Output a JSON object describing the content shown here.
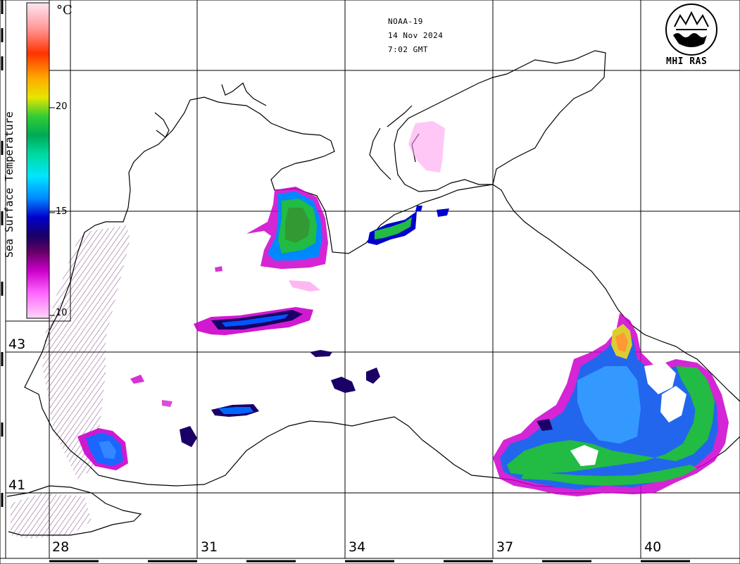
{
  "satellite": {
    "name": "NOAA-19",
    "date": "14 Nov 2024",
    "time": "7:02 GMT"
  },
  "organization": "MHI RAS",
  "legend": {
    "title": "Sea Surface Temperature",
    "unit": "°C",
    "ticks": [
      "20",
      "15",
      "10"
    ],
    "colors": [
      "#ffd6f5",
      "#ff66ff",
      "#cc00cc",
      "#660066",
      "#1a0066",
      "#0000cc",
      "#0088ff",
      "#00e5ff",
      "#00e066",
      "#009900",
      "#ffff00",
      "#ffaa00",
      "#ff3300",
      "#ff6666",
      "#ffe0ef"
    ]
  },
  "grid": {
    "latitudes": [
      "43",
      "41"
    ],
    "longitudes": [
      "28",
      "31",
      "34",
      "37",
      "40"
    ]
  },
  "colors": {
    "land_background": "#ffffff",
    "coastline": "#000000",
    "grid": "#000000"
  }
}
